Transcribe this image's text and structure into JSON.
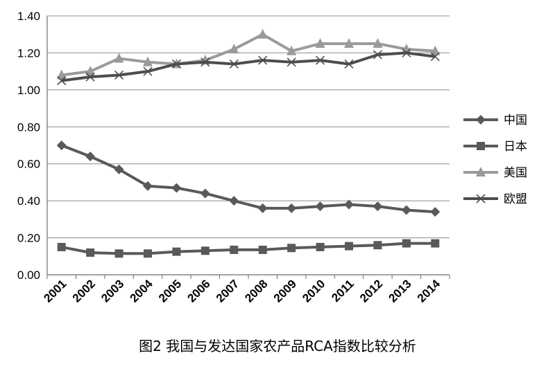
{
  "caption": "图2 我国与发达国家农产品RCA指数比较分析",
  "chart_data": {
    "type": "line",
    "title": "",
    "xlabel": "",
    "ylabel": "",
    "x": [
      "2001",
      "2002",
      "2003",
      "2004",
      "2005",
      "2006",
      "2007",
      "2008",
      "2009",
      "2010",
      "2011",
      "2012",
      "2013",
      "2014"
    ],
    "ylim": [
      0,
      1.4
    ],
    "yticks": [
      "0.00",
      "0.20",
      "0.40",
      "0.60",
      "0.80",
      "1.00",
      "1.20",
      "1.40"
    ],
    "grid": "horizontal",
    "legend_position": "right",
    "series": [
      {
        "name": "中国",
        "marker": "diamond",
        "color": "#595959",
        "values": [
          0.7,
          0.64,
          0.57,
          0.48,
          0.47,
          0.44,
          0.4,
          0.36,
          0.36,
          0.37,
          0.38,
          0.37,
          0.35,
          0.34
        ]
      },
      {
        "name": "日本",
        "marker": "square",
        "color": "#595959",
        "values": [
          0.15,
          0.12,
          0.115,
          0.115,
          0.125,
          0.13,
          0.135,
          0.135,
          0.145,
          0.15,
          0.155,
          0.16,
          0.17,
          0.17
        ]
      },
      {
        "name": "美国",
        "marker": "triangle",
        "color": "#9a9a9a",
        "values": [
          1.08,
          1.1,
          1.17,
          1.15,
          1.14,
          1.16,
          1.22,
          1.3,
          1.21,
          1.25,
          1.25,
          1.25,
          1.22,
          1.21
        ]
      },
      {
        "name": "欧盟",
        "marker": "x",
        "color": "#4d4d4d",
        "values": [
          1.05,
          1.07,
          1.08,
          1.1,
          1.14,
          1.15,
          1.14,
          1.16,
          1.15,
          1.16,
          1.14,
          1.19,
          1.2,
          1.18
        ]
      }
    ]
  }
}
